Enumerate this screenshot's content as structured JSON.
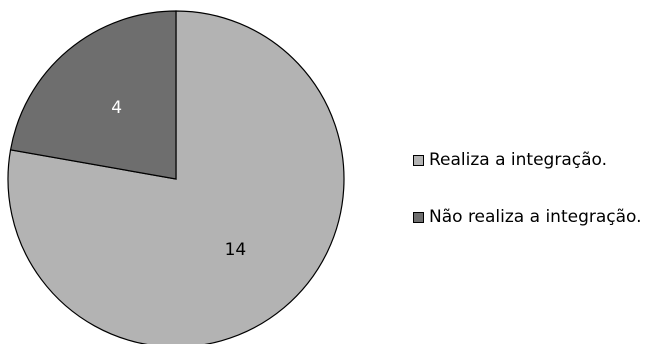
{
  "chart_data": {
    "type": "pie",
    "title": "",
    "categories": [
      "Realiza a integração.",
      "Não realiza a integração."
    ],
    "values": [
      14,
      4
    ],
    "data_labels": [
      "14",
      "4"
    ],
    "colors": [
      "#b3b3b3",
      "#6e6e6e"
    ],
    "label_colors": [
      "#000000",
      "#ffffff"
    ],
    "legend_position": "right"
  }
}
